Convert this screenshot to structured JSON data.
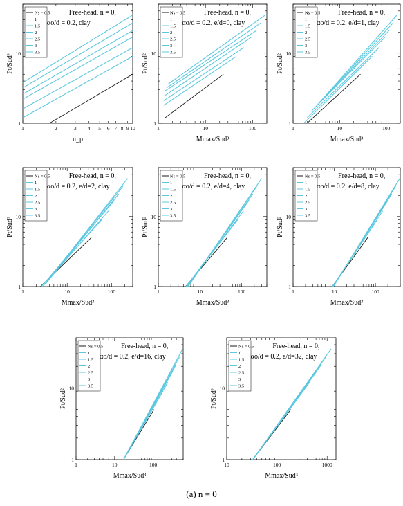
{
  "figure": {
    "caption": "(a)   n = 0"
  },
  "colors": {
    "black": "#1a1a1a",
    "cyan": "#5bc8e0",
    "legend_stroke": "#5bc8e0"
  },
  "chart_data": [
    {
      "type": "line",
      "annot_lines": [
        "Free-head,  n = 0,",
        "αo/d = 0.2,  clay"
      ],
      "xlabel": "n_p",
      "ylabel": "Pt/Sud²",
      "xscale": "log",
      "yscale": "log",
      "xlim": [
        1,
        10
      ],
      "ylim": [
        1,
        50
      ],
      "xticks": [
        1,
        2,
        3,
        4,
        5,
        6,
        7,
        8,
        9,
        10
      ],
      "yticks": [
        1,
        10
      ],
      "legend": [
        "Ns = 0.5",
        "1",
        "1.5",
        "2",
        "2.5",
        "3",
        "3.5"
      ],
      "legend_pos": "top-left",
      "series": [
        {
          "name": "Ns = 0.5",
          "x": [
            1.75,
            10
          ],
          "y": [
            1.0,
            5.0
          ]
        },
        {
          "name": "1",
          "x": [
            1,
            10
          ],
          "y": [
            1.2,
            9.0
          ]
        },
        {
          "name": "1.5",
          "x": [
            1,
            10
          ],
          "y": [
            1.6,
            12.0
          ]
        },
        {
          "name": "2",
          "x": [
            1,
            10
          ],
          "y": [
            2.2,
            17.0
          ]
        },
        {
          "name": "2.5",
          "x": [
            1,
            10
          ],
          "y": [
            2.6,
            21.0
          ]
        },
        {
          "name": "3",
          "x": [
            1,
            10
          ],
          "y": [
            3.2,
            27.0
          ]
        },
        {
          "name": "3.5",
          "x": [
            1,
            10
          ],
          "y": [
            3.8,
            35.0
          ]
        }
      ]
    },
    {
      "type": "line",
      "annot_lines": [
        "Free-head,  n = 0,",
        "αo/d = 0.2,  e/d=0,  clay"
      ],
      "xlabel": "Mmax/Sud³",
      "ylabel": "Pt/Sud²",
      "xscale": "log",
      "yscale": "log",
      "xlim": [
        1,
        200
      ],
      "ylim": [
        1,
        50
      ],
      "xticks": [
        1,
        10,
        100
      ],
      "yticks": [
        1,
        10
      ],
      "legend": [
        "Ns = 0.5",
        "1",
        "1.5",
        "2",
        "2.5",
        "3",
        "3.5"
      ],
      "legend_pos": "top-left",
      "series": [
        {
          "name": "Ns = 0.5",
          "x": [
            1.4,
            24
          ],
          "y": [
            1.2,
            5.0
          ]
        },
        {
          "name": "1",
          "x": [
            1.3,
            45
          ],
          "y": [
            1.8,
            9.0
          ]
        },
        {
          "name": "1.5",
          "x": [
            1.3,
            65
          ],
          "y": [
            2.1,
            12.0
          ]
        },
        {
          "name": "2",
          "x": [
            1.4,
            95
          ],
          "y": [
            2.5,
            17.0
          ]
        },
        {
          "name": "2.5",
          "x": [
            1.4,
            120
          ],
          "y": [
            2.9,
            21.0
          ]
        },
        {
          "name": "3",
          "x": [
            1.5,
            150
          ],
          "y": [
            3.2,
            27.0
          ]
        },
        {
          "name": "3.5",
          "x": [
            1.6,
            185
          ],
          "y": [
            3.6,
            35.0
          ]
        }
      ]
    },
    {
      "type": "line",
      "annot_lines": [
        "Free-head,  n = 0,",
        "αo/d = 0.2,  e/d=1,  clay"
      ],
      "xlabel": "Mmax/Sud³",
      "ylabel": "Pt/Sud²",
      "xscale": "log",
      "yscale": "log",
      "xlim": [
        1,
        200
      ],
      "ylim": [
        1,
        50
      ],
      "xticks": [
        1,
        10,
        100
      ],
      "yticks": [
        1,
        10
      ],
      "legend": [
        "Ns = 0.5",
        "1",
        "1.5",
        "2",
        "2.5",
        "3",
        "3.5"
      ],
      "legend_pos": "top-left",
      "series": [
        {
          "name": "Ns = 0.5",
          "x": [
            2.0,
            28
          ],
          "y": [
            1.0,
            5.0
          ]
        },
        {
          "name": "1",
          "x": [
            1.7,
            50
          ],
          "y": [
            1.0,
            9.0
          ]
        },
        {
          "name": "1.5",
          "x": [
            2.0,
            70
          ],
          "y": [
            1.2,
            12.0
          ]
        },
        {
          "name": "2",
          "x": [
            2.5,
            95
          ],
          "y": [
            1.5,
            17.0
          ]
        },
        {
          "name": "2.5",
          "x": [
            3.0,
            115
          ],
          "y": [
            1.7,
            21.0
          ]
        },
        {
          "name": "3",
          "x": [
            3.5,
            140
          ],
          "y": [
            1.9,
            27.0
          ]
        },
        {
          "name": "3.5",
          "x": [
            4.0,
            170
          ],
          "y": [
            2.1,
            35.0
          ]
        }
      ]
    },
    {
      "type": "line",
      "annot_lines": [
        "Free-head,  n = 0,",
        "αo/d = 0.2,  e/d=2,  clay"
      ],
      "xlabel": "Mmax/Sud³",
      "ylabel": "Pt/Sud²",
      "xscale": "log",
      "yscale": "log",
      "xlim": [
        1,
        300
      ],
      "ylim": [
        1,
        50
      ],
      "xticks": [
        1,
        10,
        100
      ],
      "yticks": [
        1,
        10
      ],
      "legend": [
        "Ns = 0.5",
        "1",
        "1.5",
        "2",
        "2.5",
        "3",
        "3.5"
      ],
      "legend_pos": "top-left",
      "series": [
        {
          "name": "Ns = 0.5",
          "x": [
            2.5,
            35
          ],
          "y": [
            1.0,
            5.0
          ]
        },
        {
          "name": "1",
          "x": [
            2.6,
            60
          ],
          "y": [
            1.0,
            9.0
          ]
        },
        {
          "name": "1.5",
          "x": [
            2.8,
            85
          ],
          "y": [
            1.0,
            12.0
          ]
        },
        {
          "name": "2",
          "x": [
            3.0,
            115
          ],
          "y": [
            1.1,
            17.0
          ]
        },
        {
          "name": "2.5",
          "x": [
            3.3,
            145
          ],
          "y": [
            1.1,
            21.0
          ]
        },
        {
          "name": "3",
          "x": [
            3.6,
            180
          ],
          "y": [
            1.2,
            27.0
          ]
        },
        {
          "name": "3.5",
          "x": [
            4.0,
            230
          ],
          "y": [
            1.3,
            35.0
          ]
        }
      ]
    },
    {
      "type": "line",
      "annot_lines": [
        "Free-head,  n = 0,",
        "αo/d = 0.2,  e/d=4,  clay"
      ],
      "xlabel": "Mmax/Sud³",
      "ylabel": "Pt/Sud²",
      "xscale": "log",
      "yscale": "log",
      "xlim": [
        1,
        400
      ],
      "ylim": [
        1,
        50
      ],
      "xticks": [
        1,
        10,
        100
      ],
      "yticks": [
        1,
        10
      ],
      "legend": [
        "Ns = 0.5",
        "1",
        "1.5",
        "2",
        "2.5",
        "3",
        "3.5"
      ],
      "legend_pos": "top-left",
      "series": [
        {
          "name": "Ns = 0.5",
          "x": [
            4.5,
            45
          ],
          "y": [
            1.0,
            5.0
          ]
        },
        {
          "name": "1",
          "x": [
            4.6,
            80
          ],
          "y": [
            1.0,
            9.0
          ]
        },
        {
          "name": "1.5",
          "x": [
            4.7,
            110
          ],
          "y": [
            1.0,
            12.0
          ]
        },
        {
          "name": "2",
          "x": [
            4.8,
            150
          ],
          "y": [
            1.0,
            17.0
          ]
        },
        {
          "name": "2.5",
          "x": [
            5.0,
            185
          ],
          "y": [
            1.0,
            21.0
          ]
        },
        {
          "name": "3",
          "x": [
            5.1,
            230
          ],
          "y": [
            1.0,
            27.0
          ]
        },
        {
          "name": "3.5",
          "x": [
            5.2,
            300
          ],
          "y": [
            1.0,
            35.0
          ]
        }
      ]
    },
    {
      "type": "line",
      "annot_lines": [
        "Free-head,  n = 0,",
        "αo/d = 0.2,  e/d=8,  clay"
      ],
      "xlabel": "Mmax/Sud³",
      "ylabel": "Pt/Sud²",
      "xscale": "log",
      "yscale": "log",
      "xlim": [
        1,
        400
      ],
      "ylim": [
        1,
        50
      ],
      "xticks": [
        1,
        10,
        100
      ],
      "yticks": [
        1,
        10
      ],
      "legend": [
        "Ns = 0.5",
        "1",
        "1.5",
        "2",
        "2.5",
        "3",
        "3.5"
      ],
      "legend_pos": "top-left",
      "series": [
        {
          "name": "Ns = 0.5",
          "x": [
            9,
            65
          ],
          "y": [
            1.0,
            5.0
          ]
        },
        {
          "name": "1",
          "x": [
            9,
            110
          ],
          "y": [
            1.0,
            9.0
          ]
        },
        {
          "name": "1.5",
          "x": [
            9.2,
            150
          ],
          "y": [
            1.0,
            12.0
          ]
        },
        {
          "name": "2",
          "x": [
            9.3,
            200
          ],
          "y": [
            1.0,
            17.0
          ]
        },
        {
          "name": "2.5",
          "x": [
            9.4,
            250
          ],
          "y": [
            1.0,
            21.0
          ]
        },
        {
          "name": "3",
          "x": [
            9.5,
            310
          ],
          "y": [
            1.0,
            27.0
          ]
        },
        {
          "name": "3.5",
          "x": [
            9.6,
            390
          ],
          "y": [
            1.0,
            35.0
          ]
        }
      ]
    },
    {
      "type": "line",
      "annot_lines": [
        "Free-head,  n = 0,",
        "αo/d = 0.2,  e/d=16,  clay"
      ],
      "xlabel": "Mmax/Sud³",
      "ylabel": "Pt/Sud²",
      "xscale": "log",
      "yscale": "log",
      "xlim": [
        1,
        600
      ],
      "ylim": [
        1,
        50
      ],
      "xticks": [
        1,
        10,
        100
      ],
      "yticks": [
        1,
        10
      ],
      "legend": [
        "Ns = 0.5",
        "1",
        "1.5",
        "2",
        "2.5",
        "3",
        "3.5"
      ],
      "legend_pos": "top-left",
      "series": [
        {
          "name": "Ns = 0.5",
          "x": [
            17,
            105
          ],
          "y": [
            1.0,
            5.0
          ]
        },
        {
          "name": "1",
          "x": [
            17,
            180
          ],
          "y": [
            1.0,
            9.0
          ]
        },
        {
          "name": "1.5",
          "x": [
            17,
            240
          ],
          "y": [
            1.0,
            12.0
          ]
        },
        {
          "name": "2",
          "x": [
            17,
            320
          ],
          "y": [
            1.0,
            17.0
          ]
        },
        {
          "name": "2.5",
          "x": [
            17,
            390
          ],
          "y": [
            1.0,
            21.0
          ]
        },
        {
          "name": "3",
          "x": [
            17,
            480
          ],
          "y": [
            1.0,
            27.0
          ]
        },
        {
          "name": "3.5",
          "x": [
            17,
            580
          ],
          "y": [
            1.0,
            35.0
          ]
        }
      ]
    },
    {
      "type": "line",
      "annot_lines": [
        "Free-head,  n = 0,",
        "αo/d = 0.2,  e/d=32,  clay"
      ],
      "xlabel": "Mmax/Sud³",
      "ylabel": "Pt/Sud²",
      "xscale": "log",
      "yscale": "log",
      "xlim": [
        10,
        1500
      ],
      "ylim": [
        1,
        50
      ],
      "xticks": [
        10,
        100,
        1000
      ],
      "yticks": [
        1,
        10
      ],
      "legend": [
        "Ns = 0.5",
        "1",
        "1.5",
        "2",
        "2.5",
        "3",
        "3.5"
      ],
      "legend_pos": "top-left",
      "series": [
        {
          "name": "Ns = 0.5",
          "x": [
            33,
            190
          ],
          "y": [
            1.0,
            5.0
          ]
        },
        {
          "name": "1",
          "x": [
            33,
            330
          ],
          "y": [
            1.0,
            9.0
          ]
        },
        {
          "name": "1.5",
          "x": [
            33,
            450
          ],
          "y": [
            1.0,
            12.0
          ]
        },
        {
          "name": "2",
          "x": [
            33,
            620
          ],
          "y": [
            1.0,
            17.0
          ]
        },
        {
          "name": "2.5",
          "x": [
            33,
            760
          ],
          "y": [
            1.0,
            21.0
          ]
        },
        {
          "name": "3",
          "x": [
            33,
            940
          ],
          "y": [
            1.0,
            27.0
          ]
        },
        {
          "name": "3.5",
          "x": [
            33,
            1200
          ],
          "y": [
            1.0,
            35.0
          ]
        }
      ]
    }
  ]
}
